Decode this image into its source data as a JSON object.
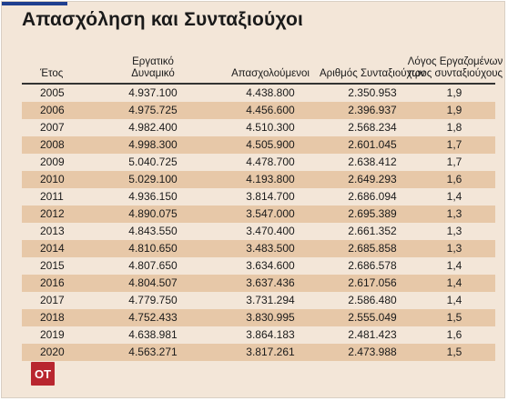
{
  "title": "Απασχόληση και Συνταξιούχοι",
  "columns": [
    "Έτος",
    "Εργατικό Δυναμικό",
    "Απασχολούμενοι",
    "Αριθμός Συνταξιούχων",
    "Λόγος Εργαζομένων προς συνταξιούχους"
  ],
  "rows": [
    [
      "2005",
      "4.937.100",
      "4.438.800",
      "2.350.953",
      "1,9"
    ],
    [
      "2006",
      "4.975.725",
      "4.456.600",
      "2.396.937",
      "1,9"
    ],
    [
      "2007",
      "4.982.400",
      "4.510.300",
      "2.568.234",
      "1,8"
    ],
    [
      "2008",
      "4.998.300",
      "4.505.900",
      "2.601.045",
      "1,7"
    ],
    [
      "2009",
      "5.040.725",
      "4.478.700",
      "2.638.412",
      "1,7"
    ],
    [
      "2010",
      "5.029.100",
      "4.193.800",
      "2.649.293",
      "1,6"
    ],
    [
      "2011",
      "4.936.150",
      "3.814.700",
      "2.686.094",
      "1,4"
    ],
    [
      "2012",
      "4.890.075",
      "3.547.000",
      "2.695.389",
      "1,3"
    ],
    [
      "2013",
      "4.843.550",
      "3.470.400",
      "2.661.352",
      "1,3"
    ],
    [
      "2014",
      "4.810.650",
      "3.483.500",
      "2.685.858",
      "1,3"
    ],
    [
      "2015",
      "4.807.650",
      "3.634.600",
      "2.686.578",
      "1,4"
    ],
    [
      "2016",
      "4.804.507",
      "3.637.436",
      "2.617.056",
      "1,4"
    ],
    [
      "2017",
      "4.779.750",
      "3.731.294",
      "2.586.480",
      "1,4"
    ],
    [
      "2018",
      "4.752.433",
      "3.830.995",
      "2.555.049",
      "1,5"
    ],
    [
      "2019",
      "4.638.981",
      "3.864.183",
      "2.481.423",
      "1,6"
    ],
    [
      "2020",
      "4.563.271",
      "3.817.261",
      "2.473.988",
      "1,5"
    ]
  ],
  "logo_text": "ΟΤ",
  "colors": {
    "background": "#f3e6d8",
    "row_shade": "#e7c8a8",
    "logo": "#b8262f",
    "accent_bar": "#1f3f8f"
  }
}
